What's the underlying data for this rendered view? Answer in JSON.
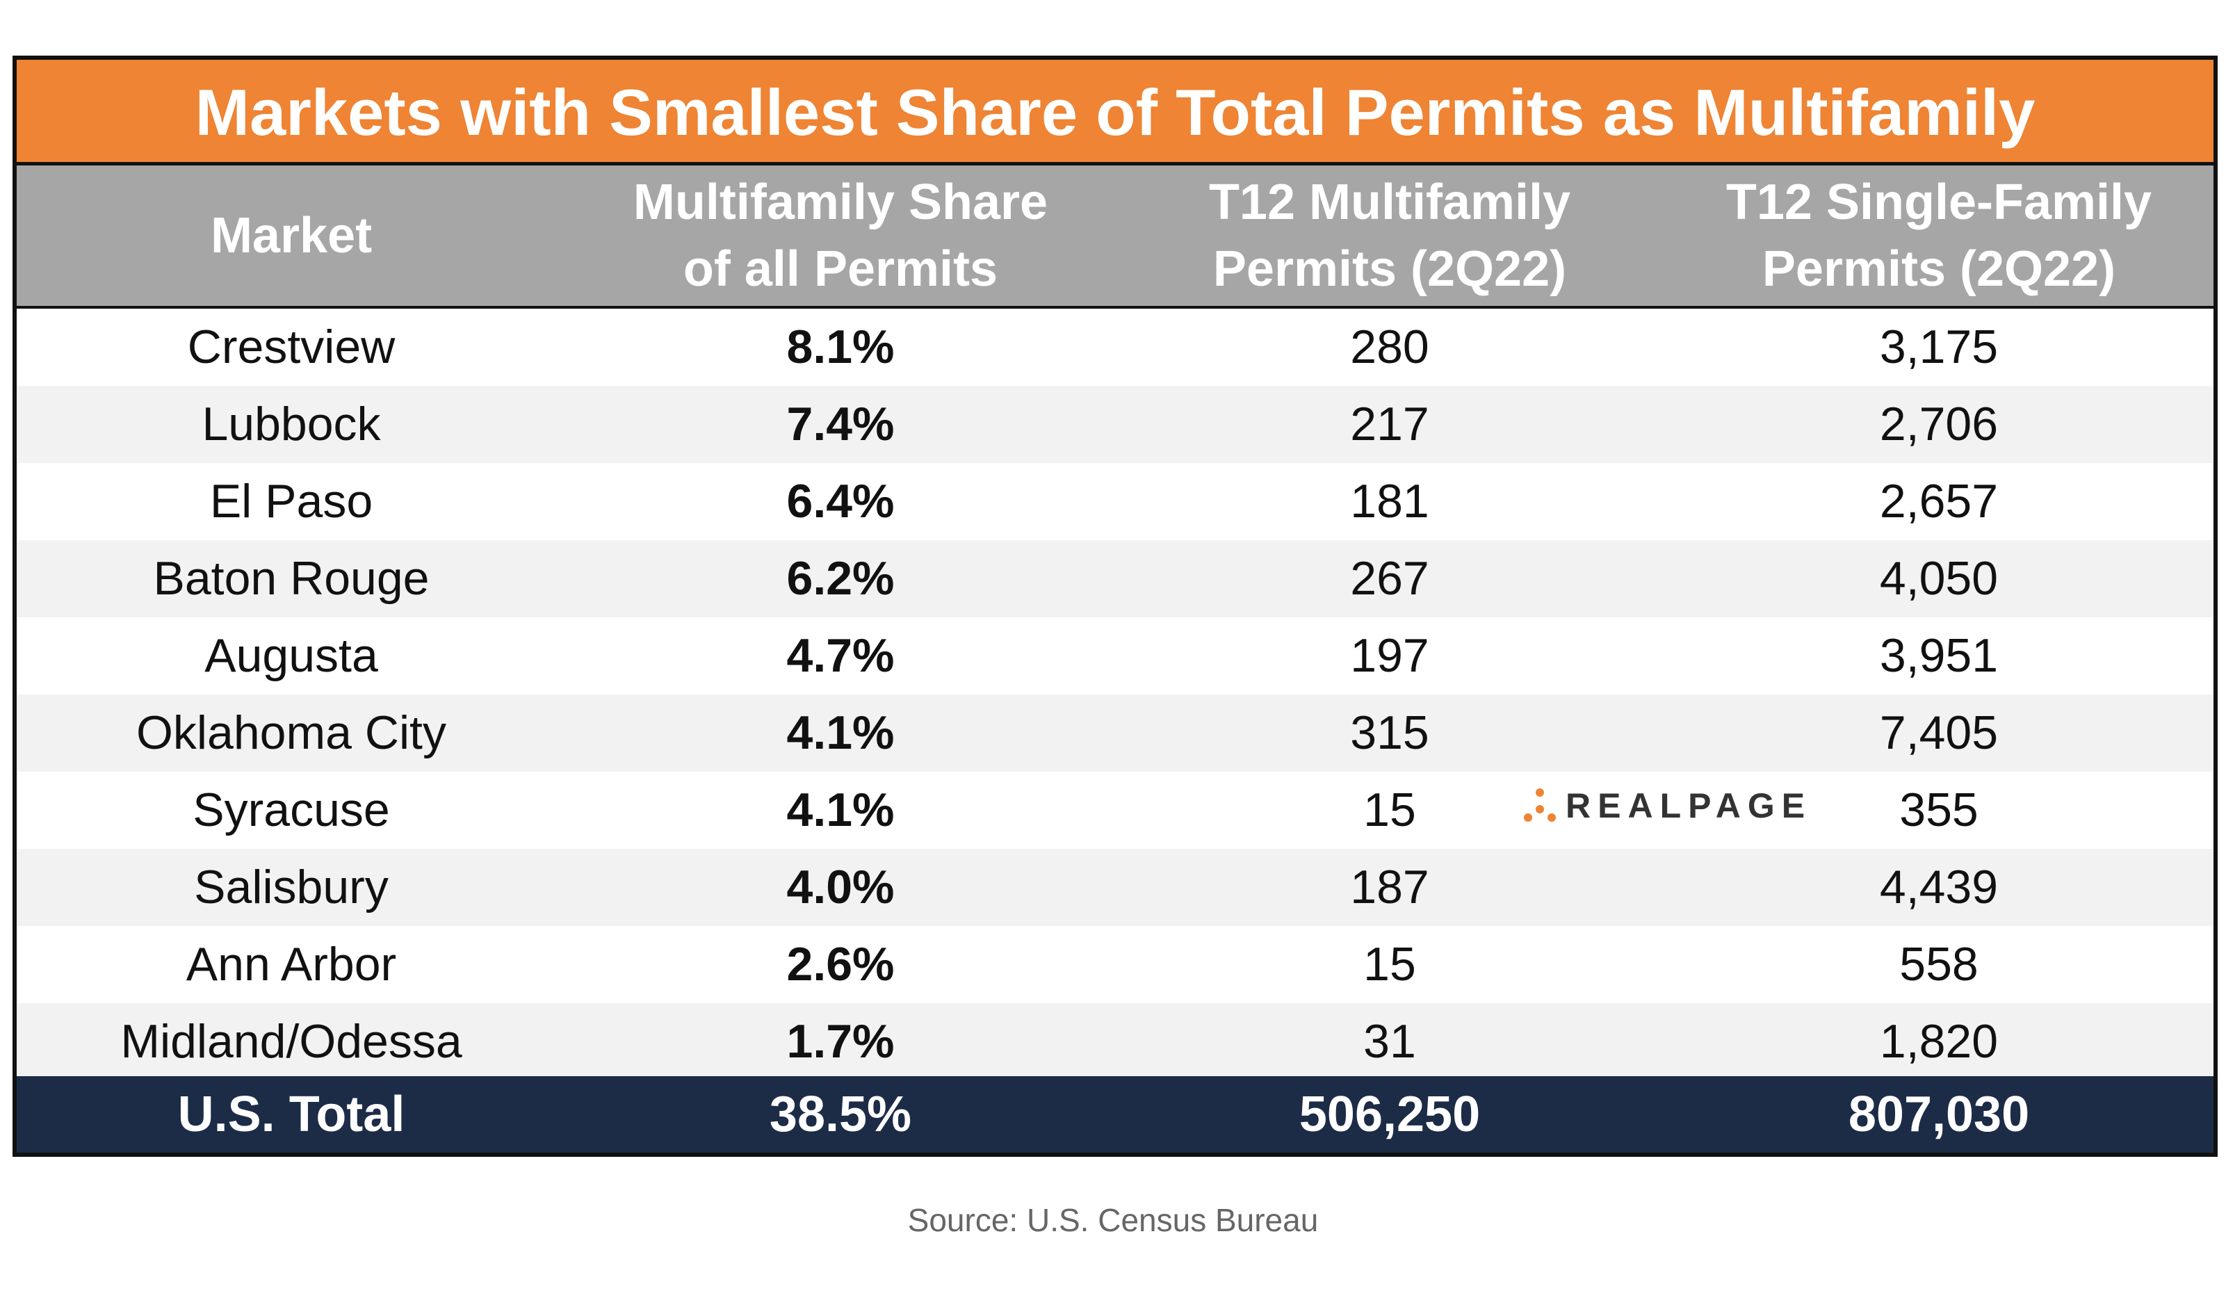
{
  "chart_data": {
    "type": "table",
    "title": "Markets with Smallest Share of Total Permits as Multifamily",
    "columns": [
      [
        "Market"
      ],
      [
        "Multifamily Share",
        "of all Permits"
      ],
      [
        "T12 Multifamily",
        "Permits (2Q22)"
      ],
      [
        "T12 Single-Family",
        "Permits (2Q22)"
      ]
    ],
    "rows": [
      [
        "Crestview",
        "8.1%",
        "280",
        "3,175"
      ],
      [
        "Lubbock",
        "7.4%",
        "217",
        "2,706"
      ],
      [
        "El Paso",
        "6.4%",
        "181",
        "2,657"
      ],
      [
        "Baton Rouge",
        "6.2%",
        "267",
        "4,050"
      ],
      [
        "Augusta",
        "4.7%",
        "197",
        "3,951"
      ],
      [
        "Oklahoma City",
        "4.1%",
        "315",
        "7,405"
      ],
      [
        "Syracuse",
        "4.1%",
        "15",
        "355"
      ],
      [
        "Salisbury",
        "4.0%",
        "187",
        "4,439"
      ],
      [
        "Ann Arbor",
        "2.6%",
        "15",
        "558"
      ],
      [
        "Midland/Odessa",
        "1.7%",
        "31",
        "1,820"
      ]
    ],
    "total": [
      "U.S. Total",
      "38.5%",
      "506,250",
      "807,030"
    ]
  },
  "source": "Source: U.S. Census Bureau",
  "logo": {
    "text": "REALPAGE",
    "icon": "realpage-dots-icon",
    "dot_color": "#ee8434"
  },
  "colors": {
    "title_bg": "#ee8434",
    "header_bg": "#a6a6a6",
    "alt_row_bg": "#f2f2f2",
    "total_bg": "#1c2c47"
  }
}
